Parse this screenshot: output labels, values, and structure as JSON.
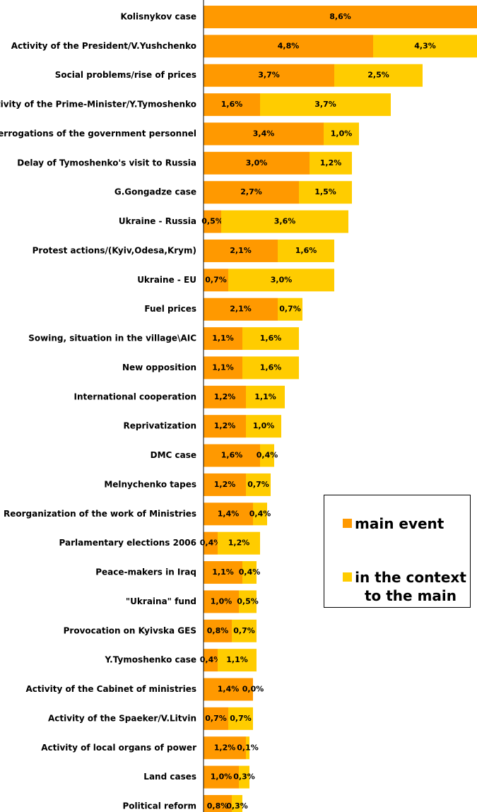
{
  "chart_data": {
    "type": "stacked-bar-horizontal",
    "categories": [
      "Kolisnykov case",
      "Activity of the President/V.Yushchenko",
      "Social problems/rise of prices",
      "Activity of the Prime-Minister/Y.Tymoshenko",
      "Interrogations of the government personnel",
      "Delay of Tymoshenko's visit to Russia",
      "G.Gongadze case",
      "Ukraine - Russia",
      "Protest actions/(Kyiv,Odesa,Krym)",
      "Ukraine - EU",
      "Fuel prices",
      "Sowing, situation in the village\\AIC",
      "New opposition",
      "International cooperation",
      "Reprivatization",
      "DMC case",
      "Melnychenko tapes",
      "Reorganization of the work of Ministries",
      "Parlamentary elections 2006",
      "Peace-makers in Iraq",
      "\"Ukraina\" fund",
      "Provocation on Kyivska GES",
      "Y.Tymoshenko case",
      "Activity of the Cabinet of ministries",
      "Activity of the Spaeker/V.Litvin",
      "Activity of local organs of power",
      "Land cases",
      "Political reform"
    ],
    "series": [
      {
        "name": "main event",
        "color": "#ff9900",
        "values": [
          8.6,
          4.8,
          3.7,
          1.6,
          3.4,
          3.0,
          2.7,
          0.5,
          2.1,
          0.7,
          2.1,
          1.1,
          1.1,
          1.2,
          1.2,
          1.6,
          1.2,
          1.4,
          0.4,
          1.1,
          1.0,
          0.8,
          0.4,
          1.4,
          0.7,
          1.2,
          1.0,
          0.8
        ],
        "value_labels": [
          "8,6%",
          "4,8%",
          "3,7%",
          "1,6%",
          "3,4%",
          "3,0%",
          "2,7%",
          "0,5%",
          "2,1%",
          "0,7%",
          "2,1%",
          "1,1%",
          "1,1%",
          "1,2%",
          "1,2%",
          "1,6%",
          "1,2%",
          "1,4%",
          "0,4%",
          "1,1%",
          "1,0%",
          "0,8%",
          "0,4%",
          "1,4%",
          "0,7%",
          "1,2%",
          "1,0%",
          "0,8%"
        ]
      },
      {
        "name": "in the context to the main",
        "color": "#ffcc00",
        "values": [
          null,
          4.3,
          2.5,
          3.7,
          1.0,
          1.2,
          1.5,
          3.6,
          1.6,
          3.0,
          0.7,
          1.6,
          1.6,
          1.1,
          1.0,
          0.4,
          0.7,
          0.4,
          1.2,
          0.4,
          0.5,
          0.7,
          1.1,
          0.0,
          0.7,
          0.1,
          0.3,
          0.3
        ],
        "value_labels": [
          null,
          "4,3%",
          "2,5%",
          "3,7%",
          "1,0%",
          "1,2%",
          "1,5%",
          "3,6%",
          "1,6%",
          "3,0%",
          "0,7%",
          "1,6%",
          "1,6%",
          "1,1%",
          "1,0%",
          "0,4%",
          "0,7%",
          "0,4%",
          "1,2%",
          "0,4%",
          "0,5%",
          "0,7%",
          "1,1%",
          "0,0%",
          "0,7%",
          "0,1%",
          "0,3%",
          "0,3%"
        ]
      }
    ],
    "xlim": [
      0,
      10
    ]
  }
}
